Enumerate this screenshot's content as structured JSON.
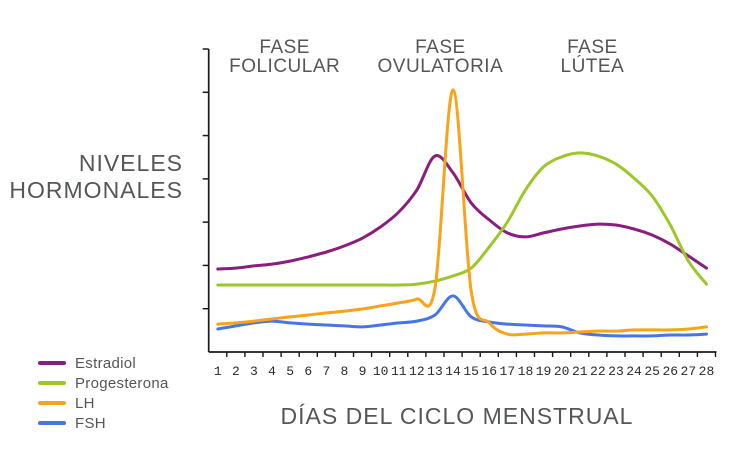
{
  "colors": {
    "axis": "#1a1a1a",
    "label_text": "#55565a",
    "tick_text": "#2a2a2a"
  },
  "chart_data": {
    "type": "line",
    "title": "",
    "xlabel": "DÍAS DEL CICLO MENSTRUAL",
    "ylabel": "NIVELES HORMONALES",
    "ylabel_lines": [
      "NIVELES",
      "HORMONALES"
    ],
    "x": [
      1,
      2,
      3,
      4,
      5,
      6,
      7,
      8,
      9,
      10,
      11,
      12,
      13,
      14,
      15,
      16,
      17,
      18,
      19,
      20,
      21,
      22,
      23,
      24,
      25,
      26,
      27,
      28
    ],
    "ylim": [
      0,
      100
    ],
    "y_tick_count": 7,
    "y_tick_labels_shown": false,
    "grid": false,
    "legend_position": "bottom-left",
    "annotations": [
      {
        "line1": "FASE",
        "line2": "FOLICULAR",
        "center_day": 4.7
      },
      {
        "line1": "FASE",
        "line2": "OVULATORIA",
        "center_day": 13.3
      },
      {
        "line1": "FASE",
        "line2": "LÚTEA",
        "center_day": 21.7
      }
    ],
    "series": [
      {
        "name": "Estradiol",
        "color": "#8a1e7e",
        "values": [
          27.4,
          27.7,
          28.4,
          29.0,
          30.0,
          31.4,
          33.0,
          35.0,
          37.6,
          41.3,
          46.2,
          53.5,
          64.7,
          59.1,
          49.2,
          43.6,
          39.3,
          38.0,
          39.3,
          40.6,
          41.6,
          42.2,
          41.9,
          40.6,
          38.6,
          35.6,
          31.7,
          27.7
        ]
      },
      {
        "name": "Progesterona",
        "color": "#9bc727",
        "values": [
          22.1,
          22.1,
          22.1,
          22.1,
          22.1,
          22.1,
          22.1,
          22.1,
          22.1,
          22.1,
          22.1,
          22.4,
          23.4,
          25.1,
          27.7,
          34.7,
          42.9,
          53.5,
          61.1,
          64.4,
          65.7,
          64.7,
          62.0,
          57.4,
          51.5,
          41.9,
          30.0,
          22.4
        ]
      },
      {
        "name": "LH",
        "color": "#f9a21b",
        "values": [
          9.2,
          9.6,
          10.2,
          10.9,
          11.6,
          12.2,
          12.9,
          13.5,
          14.2,
          15.2,
          16.2,
          17.5,
          21.1,
          86.5,
          20.1,
          9.6,
          5.9,
          5.9,
          6.3,
          6.3,
          6.6,
          6.9,
          6.9,
          7.3,
          7.3,
          7.3,
          7.6,
          8.3
        ]
      },
      {
        "name": "FSH",
        "color": "#4676e4",
        "values": [
          7.6,
          8.6,
          9.6,
          10.2,
          9.6,
          9.2,
          8.9,
          8.6,
          8.3,
          8.9,
          9.6,
          10.2,
          12.2,
          18.5,
          11.6,
          9.9,
          9.2,
          8.9,
          8.6,
          8.3,
          6.3,
          5.6,
          5.3,
          5.3,
          5.3,
          5.6,
          5.6,
          5.9
        ]
      }
    ]
  }
}
